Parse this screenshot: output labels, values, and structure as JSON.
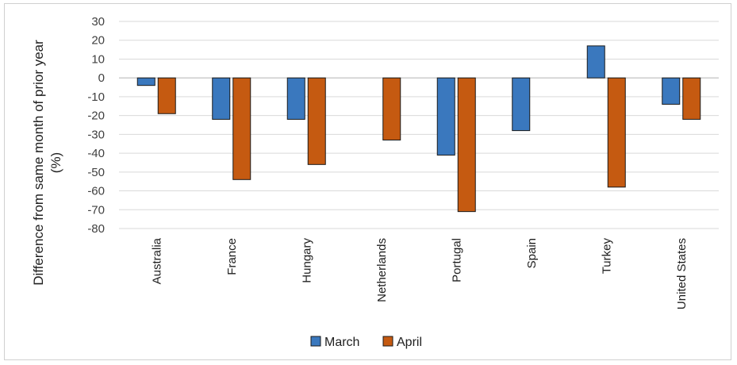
{
  "chart_data": {
    "type": "bar",
    "title": "",
    "ylabel_line1": "Difference from same month of prior year",
    "ylabel_line2": "(%)",
    "xlabel": "",
    "ylim": [
      -80,
      30
    ],
    "yticks": [
      30,
      20,
      10,
      0,
      -10,
      -20,
      -30,
      -40,
      -50,
      -60,
      -70,
      -80
    ],
    "grid": true,
    "legend_position": "bottom",
    "categories": [
      "Australia",
      "France",
      "Hungary",
      "Netherlands",
      "Portugal",
      "Spain",
      "Turkey",
      "United States"
    ],
    "series": [
      {
        "name": "March",
        "color": "#3A78BE",
        "values": [
          -4,
          -22,
          -22,
          null,
          -41,
          -28,
          17,
          -14
        ]
      },
      {
        "name": "April",
        "color": "#C55A11",
        "values": [
          -19,
          -54,
          -46,
          -33,
          -71,
          null,
          -58,
          -22
        ]
      }
    ]
  }
}
